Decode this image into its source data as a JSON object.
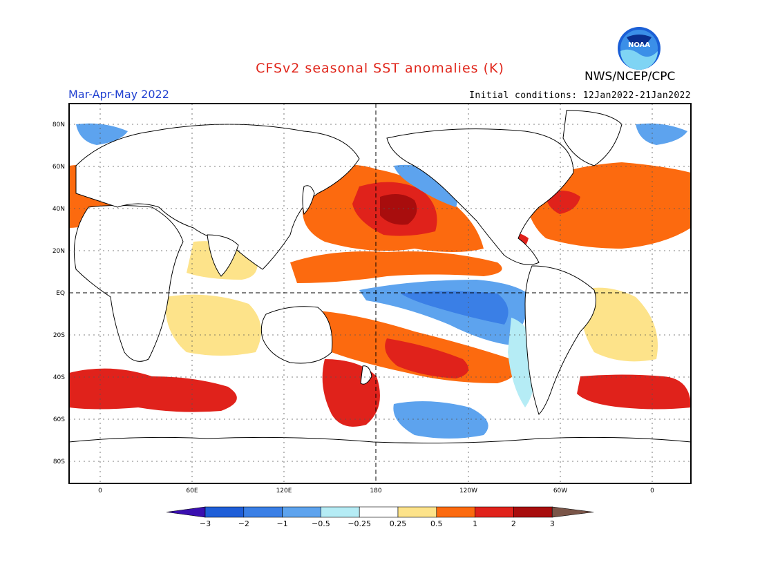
{
  "header": {
    "title": "CFSv2 seasonal SST anomalies (K)",
    "title_color": "#e0261b",
    "agency": "NWS/NCEP/CPC",
    "logo_text": "NOAA",
    "season": "Mar-Apr-May 2022",
    "initial_conditions": "Initial conditions: 12Jan2022-21Jan2022"
  },
  "map": {
    "lon_range": [
      -20,
      380
    ],
    "lat_range": [
      -90,
      90
    ],
    "lat_ticks": [
      "80N",
      "60N",
      "40N",
      "20N",
      "EQ",
      "20S",
      "40S",
      "60S",
      "80S"
    ],
    "lon_ticks": [
      "0",
      "60E",
      "120E",
      "180",
      "120W",
      "60W",
      "0"
    ],
    "grid": "dotted",
    "reference_lines": [
      "Equator",
      "Dateline"
    ]
  },
  "colorbar": {
    "labels": [
      "-3",
      "-2",
      "-1",
      "-0.5",
      "-0.25",
      "0.25",
      "0.5",
      "1",
      "2",
      "3"
    ],
    "colors": [
      "#3a0fb0",
      "#1e5ed8",
      "#3a7fe6",
      "#5da3ee",
      "#b5ecf5",
      "#ffffff",
      "#fde38a",
      "#fc6a0f",
      "#e0221b",
      "#a80d0d",
      "#7a5548"
    ]
  }
}
